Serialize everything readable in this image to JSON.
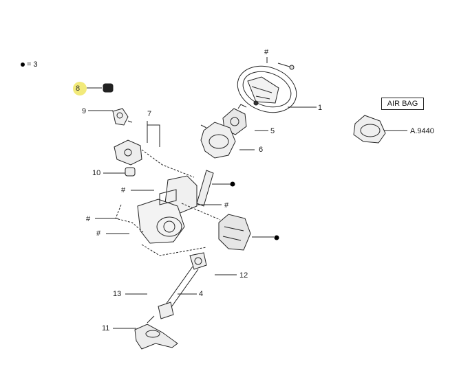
{
  "legend": {
    "symbol": "●",
    "text": "= 3"
  },
  "airbag_label": "AIR BAG",
  "airbag_ref": "A.9440",
  "callouts": {
    "c1": "1",
    "c4": "4",
    "c5": "5",
    "c6": "6",
    "c7": "7",
    "c8": "8",
    "c9": "9",
    "c10": "10",
    "c11": "11",
    "c12": "12",
    "c13": "13",
    "hash": "#"
  },
  "highlight_color": "#f2ea7a"
}
